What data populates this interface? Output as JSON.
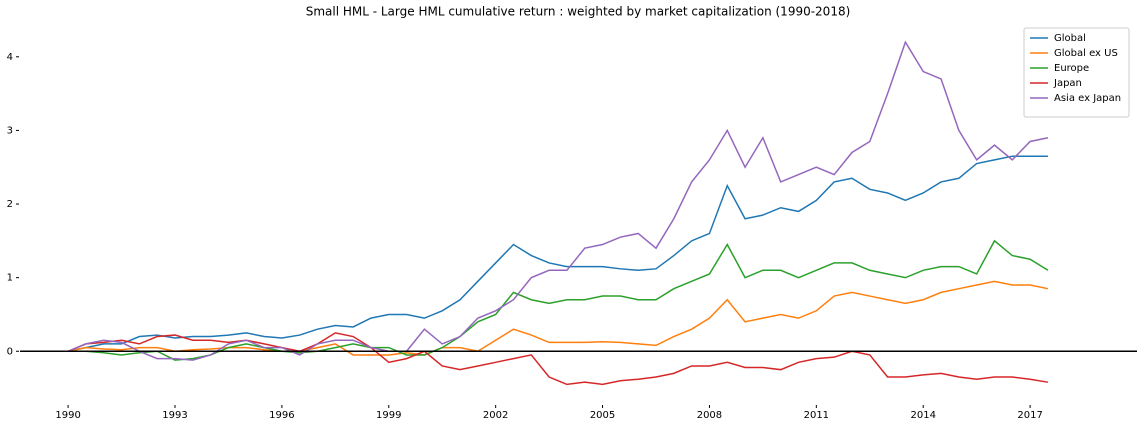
{
  "chart_data": {
    "type": "line",
    "title": "Small HML - Large HML cumulative return : weighted by market capitalization (1990-2018)",
    "x": [
      1990,
      1990.5,
      1991,
      1991.5,
      1992,
      1992.5,
      1993,
      1993.5,
      1994,
      1994.5,
      1995,
      1995.5,
      1996,
      1996.5,
      1997,
      1997.5,
      1998,
      1998.5,
      1999,
      1999.5,
      2000,
      2000.5,
      2001,
      2001.5,
      2002,
      2002.5,
      2003,
      2003.5,
      2004,
      2004.5,
      2005,
      2005.5,
      2006,
      2006.5,
      2007,
      2007.5,
      2008,
      2008.5,
      2009,
      2009.5,
      2010,
      2010.5,
      2011,
      2011.5,
      2012,
      2012.5,
      2013,
      2013.5,
      2014,
      2014.5,
      2015,
      2015.5,
      2016,
      2016.5,
      2017,
      2017.5
    ],
    "series": [
      {
        "name": "Global",
        "color": "#1f77b4",
        "values": [
          0,
          0.05,
          0.1,
          0.1,
          0.2,
          0.22,
          0.18,
          0.2,
          0.2,
          0.22,
          0.25,
          0.2,
          0.18,
          0.22,
          0.3,
          0.35,
          0.33,
          0.45,
          0.5,
          0.5,
          0.45,
          0.55,
          0.7,
          0.95,
          1.2,
          1.45,
          1.3,
          1.2,
          1.15,
          1.15,
          1.15,
          1.12,
          1.1,
          1.12,
          1.3,
          1.5,
          1.6,
          2.25,
          1.8,
          1.85,
          1.95,
          1.9,
          2.05,
          2.3,
          2.35,
          2.2,
          2.15,
          2.05,
          2.15,
          2.3,
          2.35,
          2.55,
          2.6,
          2.65,
          2.65,
          2.65
        ]
      },
      {
        "name": "Global ex US",
        "color": "#ff7f0e",
        "values": [
          0,
          0.05,
          0.03,
          0.02,
          0.05,
          0.05,
          0,
          0.02,
          0.03,
          0.05,
          0.05,
          0.02,
          0,
          0,
          0.05,
          0.1,
          -0.05,
          -0.05,
          -0.05,
          -0.02,
          -0.05,
          0.05,
          0.05,
          0,
          0.15,
          0.3,
          0.22,
          0.12,
          0.12,
          0.12,
          0.13,
          0.12,
          0.1,
          0.08,
          0.2,
          0.3,
          0.45,
          0.7,
          0.4,
          0.45,
          0.5,
          0.45,
          0.55,
          0.75,
          0.8,
          0.75,
          0.7,
          0.65,
          0.7,
          0.8,
          0.85,
          0.9,
          0.95,
          0.9,
          0.9,
          0.85
        ]
      },
      {
        "name": "Europe",
        "color": "#2ca02c",
        "values": [
          0,
          0,
          -0.02,
          -0.05,
          -0.02,
          0,
          -0.12,
          -0.1,
          -0.05,
          0.05,
          0.1,
          0.05,
          0,
          -0.02,
          0,
          0.05,
          0.1,
          0.05,
          0.05,
          -0.05,
          -0.05,
          0.05,
          0.2,
          0.4,
          0.5,
          0.8,
          0.7,
          0.65,
          0.7,
          0.7,
          0.75,
          0.75,
          0.7,
          0.7,
          0.85,
          0.95,
          1.05,
          1.45,
          1.0,
          1.1,
          1.1,
          1.0,
          1.1,
          1.2,
          1.2,
          1.1,
          1.05,
          1.0,
          1.1,
          1.15,
          1.15,
          1.05,
          1.5,
          1.3,
          1.25,
          1.1
        ]
      },
      {
        "name": "Japan",
        "color": "#d62728",
        "values": [
          0,
          0.1,
          0.12,
          0.15,
          0.1,
          0.2,
          0.22,
          0.15,
          0.15,
          0.12,
          0.15,
          0.1,
          0.05,
          0,
          0.1,
          0.25,
          0.2,
          0.05,
          -0.15,
          -0.1,
          0,
          -0.2,
          -0.25,
          -0.2,
          -0.15,
          -0.1,
          -0.05,
          -0.35,
          -0.45,
          -0.42,
          -0.45,
          -0.4,
          -0.38,
          -0.35,
          -0.3,
          -0.2,
          -0.2,
          -0.15,
          -0.22,
          -0.22,
          -0.25,
          -0.15,
          -0.1,
          -0.08,
          0,
          -0.05,
          -0.35,
          -0.35,
          -0.32,
          -0.3,
          -0.35,
          -0.38,
          -0.35,
          -0.35,
          -0.38,
          -0.42
        ]
      },
      {
        "name": "Asia ex Japan",
        "color": "#9467bd",
        "values": [
          0,
          0.1,
          0.15,
          0.12,
          0,
          -0.1,
          -0.1,
          -0.12,
          -0.05,
          0.1,
          0.15,
          0.05,
          0.05,
          -0.05,
          0.1,
          0.15,
          0.15,
          0.05,
          0,
          0,
          0.3,
          0.1,
          0.2,
          0.45,
          0.55,
          0.7,
          1.0,
          1.1,
          1.1,
          1.4,
          1.45,
          1.55,
          1.6,
          1.4,
          1.8,
          2.3,
          2.6,
          3.0,
          2.5,
          2.9,
          2.3,
          2.4,
          2.5,
          2.4,
          2.7,
          2.85,
          3.5,
          4.2,
          3.8,
          3.7,
          3.0,
          2.6,
          2.8,
          2.6,
          2.85,
          2.9
        ]
      }
    ],
    "xlim": [
      1988.65,
      2020
    ],
    "xticks": [
      1990,
      1993,
      1996,
      1999,
      2002,
      2005,
      2008,
      2011,
      2014,
      2017
    ],
    "ylim": [
      -0.73,
      4.5
    ],
    "yticks": [
      0,
      1,
      2,
      3,
      4
    ],
    "hline": 0,
    "hline_color": "#000000",
    "legend": "upper right"
  }
}
